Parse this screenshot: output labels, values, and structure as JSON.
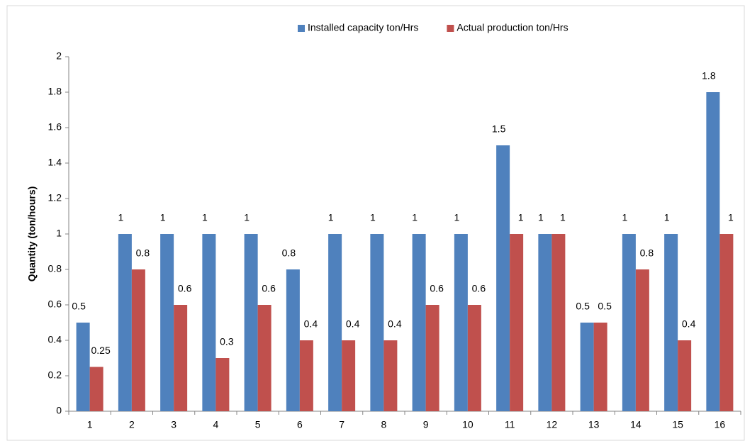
{
  "chart_data": {
    "type": "bar",
    "y_label": "Quantity (ton/hours)",
    "categories": [
      "1",
      "2",
      "3",
      "4",
      "5",
      "6",
      "7",
      "8",
      "9",
      "10",
      "11",
      "12",
      "13",
      "14",
      "15",
      "16"
    ],
    "series": [
      {
        "name": "Installed capacity ton/Hrs",
        "color": "#4f81bd",
        "values": [
          0.5,
          1,
          1,
          1,
          1,
          0.8,
          1,
          1,
          1,
          1,
          1.5,
          1,
          0.5,
          1,
          1,
          1.8
        ]
      },
      {
        "name": "Actual production ton/Hrs",
        "color": "#c0504d",
        "values": [
          0.25,
          0.8,
          0.6,
          0.3,
          0.6,
          0.4,
          0.4,
          0.4,
          0.6,
          0.6,
          1,
          1,
          0.5,
          0.8,
          0.4,
          1
        ]
      }
    ],
    "ylim": [
      0,
      2
    ],
    "yticks": [
      0,
      0.2,
      0.4,
      0.6,
      0.8,
      1,
      1.2,
      1.4,
      1.6,
      1.8,
      2
    ],
    "grid": false,
    "legend": "top",
    "data_labels": true
  }
}
